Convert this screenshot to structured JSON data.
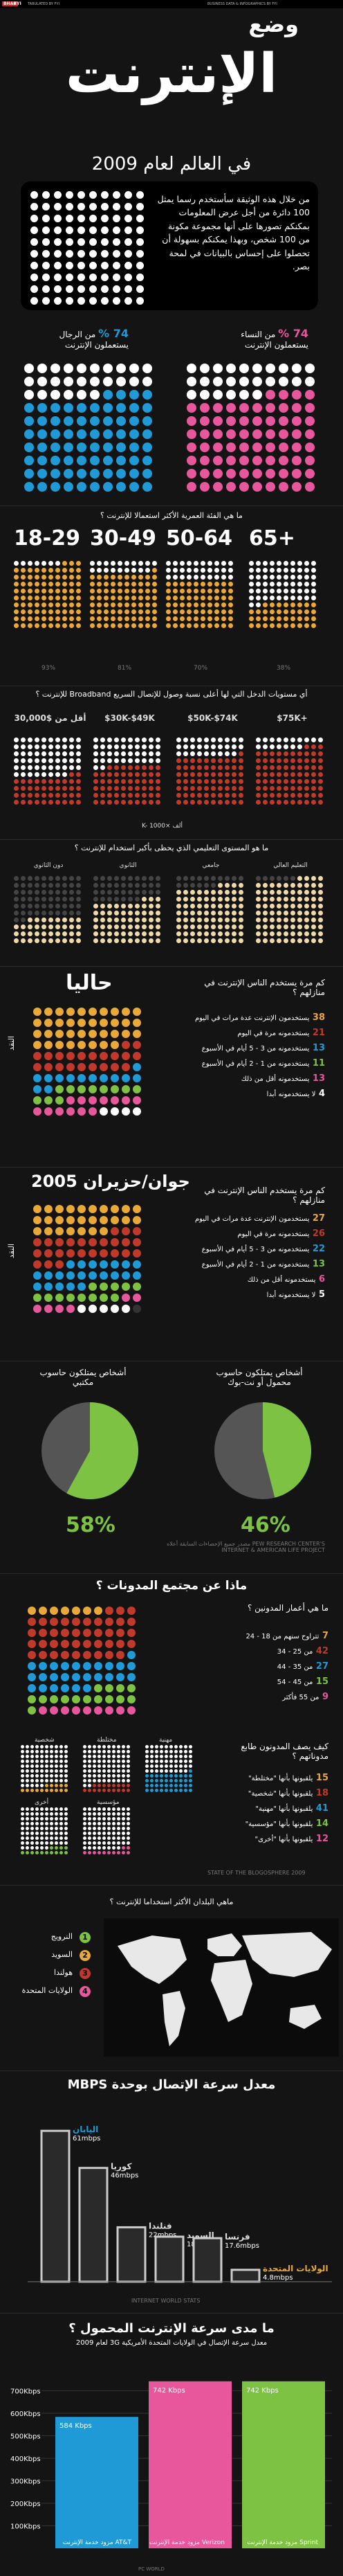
{
  "topbar": {
    "logo": "BHAR",
    "fyi": "FYI",
    "left_text": "TABULATED BY FYI",
    "right_text": "BUSINESS DATA & INFOGRAPHICS BY FYI"
  },
  "hero": {
    "word_small": "وضع",
    "word_big": "الإنترنت",
    "subtitle": "في العالم لعام 2009"
  },
  "intro": {
    "text": "من خلال هذه الوثيقة سأستخدم رسما يمثل 100 دائرة من أجل عرض المعلومات بمكنكم تصورها على أنها مجموعة مكونة من 100 شخص، وبهذا يمكنكم بسهولة أن تحصلوا على إحساس بالبيانات في لمحة بصر."
  },
  "gender": {
    "women": {
      "pct": "74 %",
      "label": "من النساء يستعملون الإنترنت",
      "value": 74,
      "color": "#e8579b"
    },
    "men": {
      "pct": "74 %",
      "label": "من الرجال يستعملون الإنترنت",
      "value": 74,
      "color": "#1f9ad6"
    }
  },
  "age": {
    "question": "ما هي الفئة العمرية الأكثر استعمالا للإنترنت ؟",
    "groups": [
      {
        "label": "18-29",
        "value": 93,
        "pct": "93%"
      },
      {
        "label": "30-49",
        "value": 81,
        "pct": "81%"
      },
      {
        "label": "50-64",
        "value": 70,
        "pct": "70%"
      },
      {
        "label": "65+",
        "value": 38,
        "pct": "38%"
      }
    ],
    "color": "#e8a83a"
  },
  "income": {
    "question": "أي مستويات الدخل التي لها أعلى نسبة وصول للإتصال السريع Broadband للإنترنت ؟",
    "groups": [
      {
        "label": "أقل من $30,000",
        "value": 42,
        "pct": "42%"
      },
      {
        "label": "$30K-$49K",
        "value": 58,
        "pct": "58%"
      },
      {
        "label": "$50K-$74K",
        "value": 71,
        "pct": "71%"
      },
      {
        "label": "$75K+",
        "value": 83,
        "pct": "83%"
      }
    ],
    "note": "K- ألف ×1000",
    "color": "#c0392b"
  },
  "education": {
    "question": "ما هو المستوى التعليمي الذي يحظى بأكبر استخدام للإنترنت ؟",
    "groups": [
      {
        "label": "دون الثانوي",
        "value": 38
      },
      {
        "label": "الثانوي",
        "value": 63
      },
      {
        "label": "جامعي",
        "value": 84
      },
      {
        "label": "التعليم العالي",
        "value": 94
      }
    ],
    "color": "#f0d9a8"
  },
  "usage_now": {
    "title": "حاليا",
    "question": "كم مرة يستخدم الناس الإنترنت في منازلهم ؟",
    "side": "النقد",
    "rows": [
      {
        "num": "38",
        "text": "يستخدمون الإنترنت عدة مرات في اليوم",
        "color": "#e8a83a"
      },
      {
        "num": "21",
        "text": "يستخدمونه مرة في اليوم",
        "color": "#c0392b"
      },
      {
        "num": "13",
        "text": "يستخدمونه من 3 - 5 أيام في الأسبوع",
        "color": "#1f9ad6"
      },
      {
        "num": "11",
        "text": "يستخدمونه من 1 - 2 أيام في الأسبوع",
        "color": "#7dc242"
      },
      {
        "num": "13",
        "text": "يستخدمونه أقل من ذلك",
        "color": "#e8579b"
      },
      {
        "num": "4",
        "text": "لا يستخدمونه أبدا",
        "color": "#ffffff"
      }
    ]
  },
  "usage_2005": {
    "title": "جوان/حزيران 2005",
    "question": "كم مرة يستخدم الناس الإنترنت في منازلهم ؟",
    "side": "النقد",
    "rows": [
      {
        "num": "27",
        "text": "يستخدمون الإنترنت عدة مرات في اليوم",
        "color": "#e8a83a"
      },
      {
        "num": "26",
        "text": "يستخدمونه مرة في اليوم",
        "color": "#c0392b"
      },
      {
        "num": "22",
        "text": "يستخدمونه من 3 - 5 أيام في الأسبوع",
        "color": "#1f9ad6"
      },
      {
        "num": "13",
        "text": "يستخدمونه من 1 - 2 أيام في الأسبوع",
        "color": "#7dc242"
      },
      {
        "num": "6",
        "text": "يستخدمونه أقل من ذلك",
        "color": "#e8579b"
      },
      {
        "num": "5",
        "text": "لا يستخدمونه أبدا",
        "color": "#ffffff"
      }
    ]
  },
  "devices": {
    "desktop": {
      "title": "أشخاص يمتلكون حاسوب مكتبي",
      "value": 58,
      "pct": "58%"
    },
    "laptop": {
      "title": "أشخاص يمتلكون حاسوب محمول أو نت-بوك",
      "value": 46,
      "pct": "46%"
    },
    "source": "مصدر جميع الإحصاءات السابقة أعلاه PEW RESEARCH CENTER'S INTERNET & AMERICAN LIFE PROJECT"
  },
  "blogs": {
    "question": "ماذا عن مجتمع المدونات ؟",
    "age_question": "ما هي أعمار المدونين ؟",
    "ages": [
      {
        "num": "7",
        "text": "تتراوح سنهم من 18 - 24",
        "color": "#e8a83a"
      },
      {
        "num": "42",
        "text": "من 25 - 34",
        "color": "#c0392b"
      },
      {
        "num": "27",
        "text": "من 35 - 44",
        "color": "#1f9ad6"
      },
      {
        "num": "15",
        "text": "من 45 - 54",
        "color": "#7dc242"
      },
      {
        "num": "9",
        "text": "من 55 فأكثر",
        "color": "#e8579b"
      }
    ],
    "labels_question": "كيف يصف المدونون طابع مدوناتهم ؟",
    "labels": [
      {
        "num": "15",
        "text": "يلقبونها بأنها \"مختلطة\"",
        "color": "#e8a83a"
      },
      {
        "num": "18",
        "text": "يلقبونها بأنها \"شخصية\"",
        "color": "#c0392b"
      },
      {
        "num": "41",
        "text": "يلقبونها بأنها \"مهنية\"",
        "color": "#1f9ad6"
      },
      {
        "num": "14",
        "text": "يلقبونها بأنها \"مؤسسية\"",
        "color": "#7dc242"
      },
      {
        "num": "12",
        "text": "يلقبونها بأنها \"أخرى\"",
        "color": "#e8579b"
      }
    ],
    "grid_labels": [
      "شخصية",
      "مختلطة",
      "مهنية",
      "أخرى",
      "مؤسسية"
    ],
    "source": "STATE OF THE BLOGOSPHERE 2009"
  },
  "countries": {
    "question": "ماهي البلدان الأكثر استخداما للإنترنت ؟",
    "items": [
      {
        "num": "1",
        "name": "النرويج",
        "color": "#7dc242"
      },
      {
        "num": "2",
        "name": "السويد",
        "color": "#e8a83a"
      },
      {
        "num": "3",
        "name": "هولندا",
        "color": "#c0392b"
      },
      {
        "num": "4",
        "name": "الولايات المتحدة",
        "color": "#e8579b"
      }
    ]
  },
  "speed": {
    "title": "معدل سرعة الإتصال بوحدة MBPS",
    "source": "INTERNET WORLD STATS",
    "highlight": {
      "name": "اليابان",
      "value": "61mbps"
    }
  },
  "mobile": {
    "question": "ما مدى سرعة الإنترنت المحمول ؟",
    "subtitle": "معدل سرعة الإتصال في الولايات المتحدة الأمريكية 3G لعام 2009",
    "bars": [
      {
        "label": "584 Kbps",
        "name": "مزود خدمة الإنترنت AT&T",
        "value": 584,
        "color": "#1f9ad6"
      },
      {
        "label": "742 Kbps",
        "name": "مزود خدمة الإنترنت Verizon",
        "value": 742,
        "color": "#e8579b"
      },
      {
        "label": "742 Kbps",
        "name": "مزود خدمة الإنترنت Sprint",
        "value": 742,
        "color": "#7dc242"
      }
    ],
    "yticks": [
      "700",
      "600",
      "500",
      "400",
      "300",
      "200",
      "100"
    ],
    "source": "PC WORLD"
  },
  "chart_data": [
    {
      "type": "bar",
      "title": "ما هي الفئة العمرية الأكثر استعمالا للإنترنت ؟",
      "categories": [
        "18-29",
        "30-49",
        "50-64",
        "65+"
      ],
      "values": [
        93,
        81,
        70,
        38
      ]
    },
    {
      "type": "bar",
      "title": "معدل سرعة الإتصال بوحدة MBPS",
      "categories": [
        "اليابان",
        "كوريا",
        "فنلندا",
        "السويد",
        "فرنسا",
        "الولايات المتحدة"
      ],
      "values": [
        61,
        46,
        22,
        18.2,
        17.6,
        4.8
      ],
      "value_labels": [
        "61mbps",
        "46mbps",
        "22mbps",
        "18.2mbps",
        "17.6mbps",
        "4.8mbps"
      ],
      "ylim": [
        0,
        70
      ]
    },
    {
      "type": "bar",
      "title": "ما مدى سرعة الإنترنت المحمول ؟",
      "categories": [
        "AT&T",
        "Verizon",
        "Sprint"
      ],
      "values": [
        584,
        742,
        742
      ],
      "ylim": [
        0,
        800
      ]
    }
  ]
}
